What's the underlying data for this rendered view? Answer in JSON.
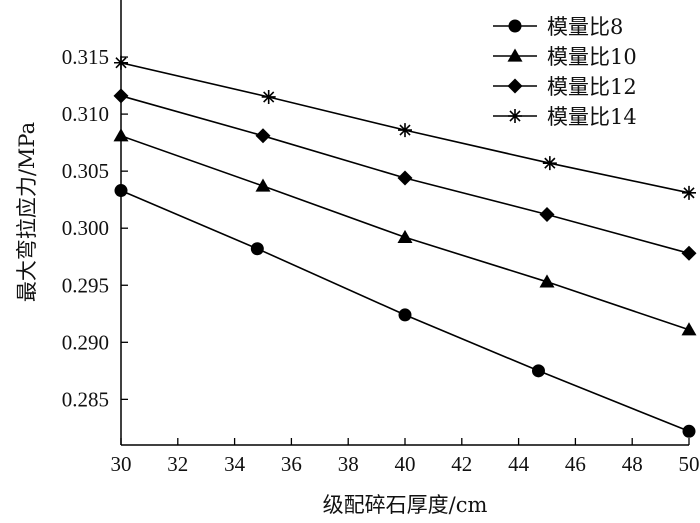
{
  "chart_data": {
    "type": "line",
    "title": "",
    "xlabel": "级配碎石厚度/cm",
    "ylabel": "最大弯拉应力/MPa",
    "xlim": [
      30,
      50
    ],
    "ylim": [
      0.281,
      0.32
    ],
    "x_ticks": [
      "30",
      "32",
      "34",
      "36",
      "38",
      "40",
      "42",
      "44",
      "46",
      "48",
      "50"
    ],
    "y_ticks": [
      "0.285",
      "0.290",
      "0.295",
      "0.300",
      "0.305",
      "0.310",
      "0.315"
    ],
    "grid": false,
    "legend_position": "top-right",
    "series": [
      {
        "name": "模量比8",
        "marker": "circle",
        "color": "#000000",
        "points": [
          [
            30,
            0.3033
          ],
          [
            34.8,
            0.2982
          ],
          [
            40,
            0.2924
          ],
          [
            44.7,
            0.2875
          ],
          [
            50,
            0.2822
          ]
        ]
      },
      {
        "name": "模量比10",
        "marker": "triangle",
        "color": "#000000",
        "points": [
          [
            30,
            0.3081
          ],
          [
            35,
            0.3037
          ],
          [
            40,
            0.2992
          ],
          [
            45,
            0.2953
          ],
          [
            50,
            0.2911
          ]
        ]
      },
      {
        "name": "模量比12",
        "marker": "diamond",
        "color": "#000000",
        "points": [
          [
            30,
            0.3116
          ],
          [
            35,
            0.3081
          ],
          [
            40,
            0.3044
          ],
          [
            45,
            0.3012
          ],
          [
            50,
            0.2978
          ]
        ]
      },
      {
        "name": "模量比14",
        "marker": "asterisk",
        "color": "#000000",
        "points": [
          [
            30,
            0.3145
          ],
          [
            35.2,
            0.3115
          ],
          [
            40,
            0.3086
          ],
          [
            45.1,
            0.3057
          ],
          [
            50,
            0.3031
          ]
        ]
      }
    ]
  }
}
